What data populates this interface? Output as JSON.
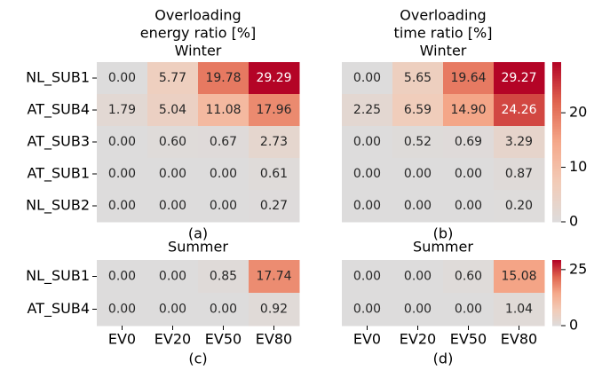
{
  "chart_data": [
    {
      "type": "heatmap",
      "title": [
        "Overloading",
        "energy ratio [%]",
        "Winter"
      ],
      "caption": "(a)",
      "y_categories": [
        "NL_SUB1",
        "AT_SUB4",
        "AT_SUB3",
        "AT_SUB1",
        "NL_SUB2"
      ],
      "values": [
        [
          0,
          5.77,
          19.78,
          29.29
        ],
        [
          1.79,
          5.04,
          11.08,
          17.96
        ],
        [
          0,
          0.6,
          0.67,
          2.73
        ],
        [
          0,
          0,
          0,
          0.61
        ],
        [
          0,
          0,
          0,
          0.27
        ]
      ],
      "value_labels": [
        [
          "0.00",
          "5.77",
          "19.78",
          "29.29"
        ],
        [
          "1.79",
          "5.04",
          "11.08",
          "17.96"
        ],
        [
          "0.00",
          "0.60",
          "0.67",
          "2.73"
        ],
        [
          "0.00",
          "0.00",
          "0.00",
          "0.61"
        ],
        [
          "0.00",
          "0.00",
          "0.00",
          "0.27"
        ]
      ],
      "vlim": [
        0,
        29.29
      ],
      "colormap": [
        "#dddcdc",
        "#f2cbb7",
        "#f5a88a",
        "#e0654f",
        "#b40426"
      ]
    },
    {
      "type": "heatmap",
      "title": [
        "Overloading",
        "time ratio [%]",
        "Winter"
      ],
      "caption": "(b)",
      "values": [
        [
          0,
          5.65,
          19.64,
          29.27
        ],
        [
          2.25,
          6.59,
          14.9,
          24.26
        ],
        [
          0,
          0.52,
          0.69,
          3.29
        ],
        [
          0,
          0,
          0,
          0.87
        ],
        [
          0,
          0,
          0,
          0.2
        ]
      ],
      "value_labels": [
        [
          "0.00",
          "5.65",
          "19.64",
          "29.27"
        ],
        [
          "2.25",
          "6.59",
          "14.90",
          "24.26"
        ],
        [
          "0.00",
          "0.52",
          "0.69",
          "3.29"
        ],
        [
          "0.00",
          "0.00",
          "0.00",
          "0.87"
        ],
        [
          "0.00",
          "0.00",
          "0.00",
          "0.20"
        ]
      ],
      "vlim": [
        0,
        29.29
      ],
      "colormap": [
        "#dddcdc",
        "#f2cbb7",
        "#f5a88a",
        "#e0654f",
        "#b40426"
      ],
      "colorbar_ticks": [
        0,
        10,
        20
      ]
    },
    {
      "type": "heatmap",
      "title": [
        "Summer"
      ],
      "caption": "(c)",
      "y_categories": [
        "NL_SUB1",
        "AT_SUB4"
      ],
      "x_categories": [
        "EV0",
        "EV20",
        "EV50",
        "EV80"
      ],
      "values": [
        [
          0,
          0,
          0.85,
          17.74
        ],
        [
          0,
          0,
          0,
          0.92
        ]
      ],
      "value_labels": [
        [
          "0.00",
          "0.00",
          "0.85",
          "17.74"
        ],
        [
          "0.00",
          "0.00",
          "0.00",
          "0.92"
        ]
      ],
      "vlim": [
        0,
        29.29
      ],
      "colormap": [
        "#dddcdc",
        "#f2cbb7",
        "#f5a88a",
        "#e0654f",
        "#b40426"
      ]
    },
    {
      "type": "heatmap",
      "title": [
        "Summer"
      ],
      "caption": "(d)",
      "x_categories": [
        "EV0",
        "EV20",
        "EV50",
        "EV80"
      ],
      "values": [
        [
          0,
          0,
          0.6,
          15.08
        ],
        [
          0,
          0,
          0,
          1.04
        ]
      ],
      "value_labels": [
        [
          "0.00",
          "0.00",
          "0.60",
          "15.08"
        ],
        [
          "0.00",
          "0.00",
          "0.00",
          "1.04"
        ]
      ],
      "vlim": [
        0,
        29.29
      ],
      "colormap": [
        "#dddcdc",
        "#f2cbb7",
        "#f5a88a",
        "#e0654f",
        "#b40426"
      ],
      "colorbar_ticks": [
        0,
        25
      ]
    }
  ]
}
